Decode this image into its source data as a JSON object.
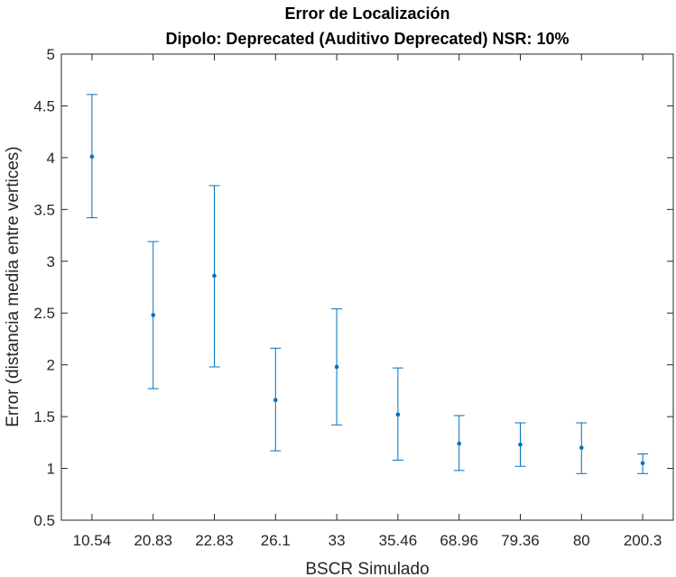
{
  "chart_data": {
    "type": "scatter",
    "title_line1": "Error de Localización",
    "title_line2": "Dipolo: Deprecated (Auditivo Deprecated) NSR: 10%",
    "xlabel": "BSCR Simulado",
    "ylabel": "Error (distancia media entre vertices)",
    "categories": [
      "10.54",
      "20.83",
      "22.83",
      "26.1",
      "33",
      "35.46",
      "68.96",
      "79.36",
      "80",
      "200.3"
    ],
    "ylim": [
      0.5,
      5
    ],
    "yticks": [
      "0.5",
      "1",
      "1.5",
      "2",
      "2.5",
      "3",
      "3.5",
      "4",
      "4.5",
      "5"
    ],
    "grid": false,
    "series": [
      {
        "values": [
          4.01,
          2.48,
          2.86,
          1.66,
          1.98,
          1.52,
          1.24,
          1.23,
          1.2,
          1.05
        ],
        "lower": [
          3.42,
          1.77,
          1.98,
          1.17,
          1.42,
          1.08,
          0.98,
          1.02,
          0.95,
          0.95
        ],
        "upper": [
          4.61,
          3.19,
          3.73,
          2.16,
          2.54,
          1.97,
          1.51,
          1.44,
          1.44,
          1.14
        ],
        "color": "#0072BD"
      }
    ]
  }
}
